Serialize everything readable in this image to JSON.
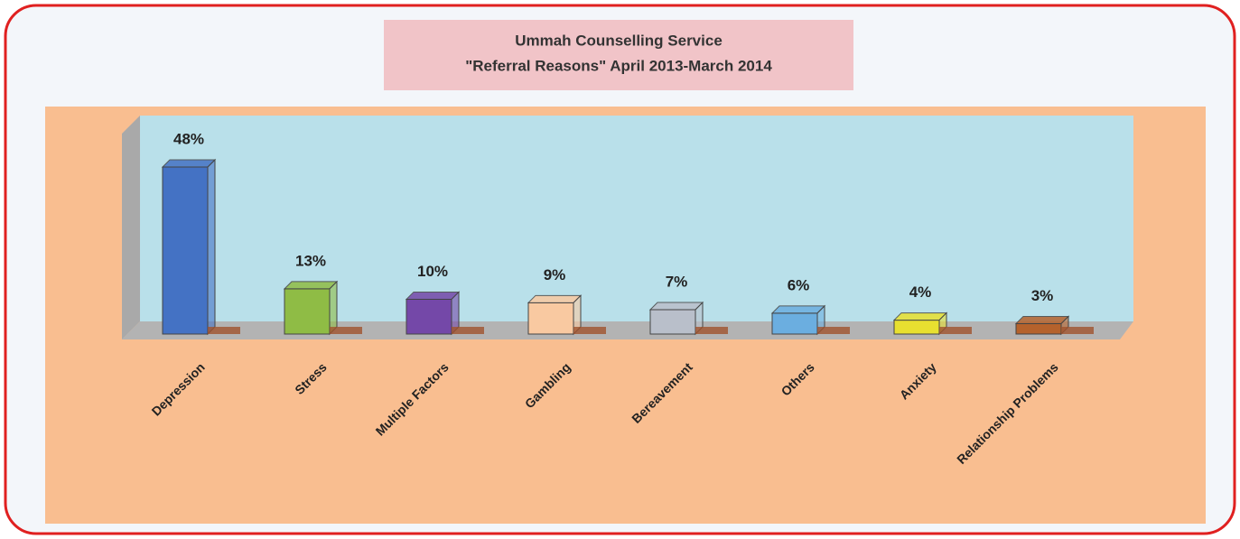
{
  "chart_data": {
    "type": "bar3d",
    "title": "Ummah Counselling Service",
    "subtitle": "\"Referral Reasons\" April 2013-March 2014",
    "categories": [
      "Depression",
      "Stress",
      "Multiple Factors",
      "Gambling",
      "Bereavement",
      "Others",
      "Anxiety",
      "Relationship Problems"
    ],
    "values": [
      48,
      13,
      10,
      9,
      7,
      6,
      4,
      3
    ],
    "value_labels": [
      "48%",
      "13%",
      "10%",
      "9%",
      "7%",
      "6%",
      "4%",
      "3%"
    ],
    "colors": [
      "#4472c4",
      "#8fbc45",
      "#7448a8",
      "#f9c9a1",
      "#b9bfca",
      "#6baee0",
      "#e8e030",
      "#b5622c"
    ]
  }
}
